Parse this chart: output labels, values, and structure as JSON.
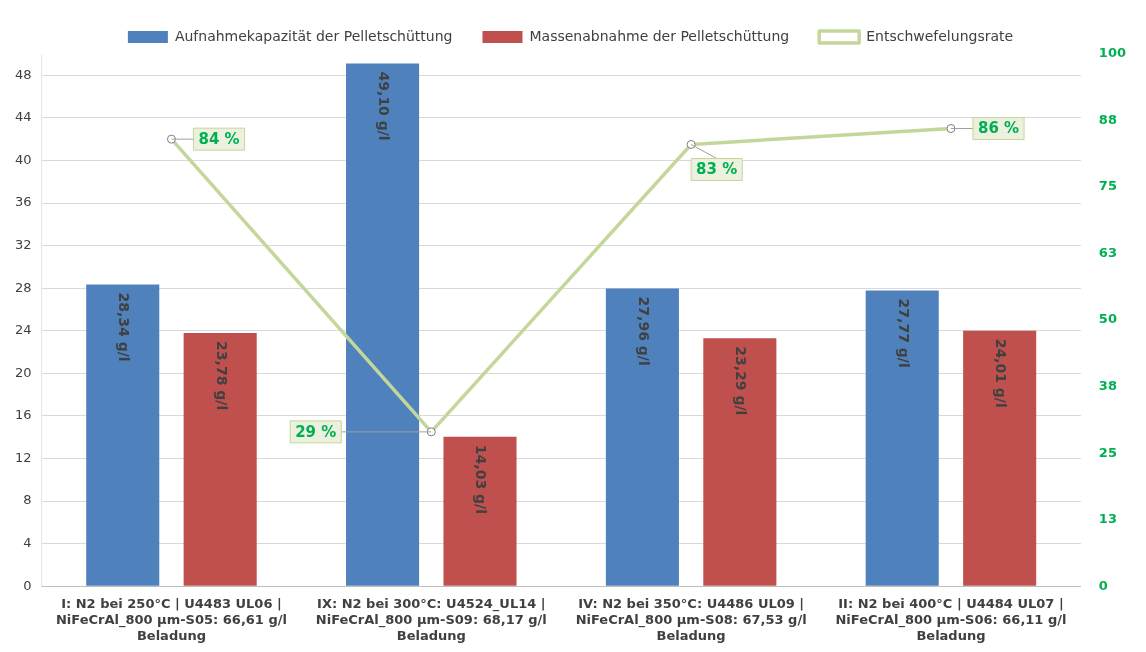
{
  "chart_data": {
    "type": "bar",
    "categories": [
      "I: N2 bei 250°C | U4483 UL06 | NiFeCrAl_800 µm-S05: 66,61 g/l Beladung",
      "IX: N2 bei 300°C: U4524_UL14 | NiFeCrAl_800 µm-S09: 68,17 g/l Beladung",
      "IV: N2 bei 350°C: U4486 UL09 | NiFeCrAl_800 µm-S08: 67,53 g/l Beladung",
      "II: N2 bei 400°C | U4484 UL07 | NiFeCrAl_800 µm-S06: 66,11 g/l Beladung"
    ],
    "series": [
      {
        "name": "Aufnahmekapazität der Pelletschüttung",
        "color": "#4f81bd",
        "values": [
          28.34,
          49.1,
          27.96,
          27.77
        ],
        "value_labels": [
          "28,34 g/l",
          "49,10 g/l",
          "27,96 g/l",
          "27,77 g/l"
        ]
      },
      {
        "name": "Massenabnahme der Pelletschüttung",
        "color": "#c0504d",
        "values": [
          23.78,
          14.03,
          23.29,
          24.01
        ],
        "value_labels": [
          "23,78 g/l",
          "14,03 g/l",
          "23,29 g/l",
          "24,01 g/l"
        ]
      },
      {
        "name": "Entschwefelungsrate",
        "type": "line",
        "axis": "y2",
        "color": "#c4d79b",
        "marker": "circle",
        "values": [
          84,
          29,
          83,
          86
        ],
        "value_labels": [
          "84 %",
          "29 %",
          "83 %",
          "86 %"
        ]
      }
    ],
    "ylim": [
      0,
      50
    ],
    "yticks": [
      0,
      4,
      8,
      12,
      16,
      20,
      24,
      28,
      32,
      36,
      40,
      44,
      48
    ],
    "y2lim": [
      0,
      100
    ],
    "y2ticks": [
      0,
      {
        "value": 12.5,
        "label": "13"
      },
      25,
      {
        "value": 37.5,
        "label": "38"
      },
      50,
      {
        "value": 62.5,
        "label": "63"
      },
      75,
      {
        "value": 87.5,
        "label": "88"
      },
      100
    ],
    "grid": "y",
    "legend": "top"
  }
}
